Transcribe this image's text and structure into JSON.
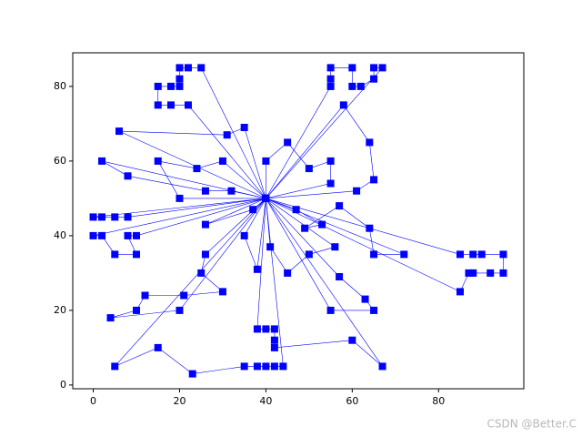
{
  "chart_data": {
    "type": "line",
    "color": "#0000ff",
    "marker": "square",
    "xlim": [
      -4.75,
      99.75
    ],
    "ylim": [
      -1,
      89
    ],
    "xticks": [
      0,
      20,
      40,
      60,
      80
    ],
    "yticks": [
      0,
      20,
      40,
      60,
      80
    ],
    "watermark": "CSDN @Better.C",
    "series": [
      {
        "x": [
          40,
          25,
          22,
          20,
          20,
          20,
          18,
          15,
          15,
          18,
          22,
          40
        ],
        "values": [
          50,
          85,
          85,
          85,
          82,
          80,
          80,
          80,
          75,
          75,
          75,
          50
        ]
      },
      {
        "x": [
          40,
          6,
          31,
          35,
          40
        ],
        "values": [
          50,
          68,
          67,
          69,
          50
        ]
      },
      {
        "x": [
          40,
          30,
          24,
          15,
          20,
          40
        ],
        "values": [
          50,
          60,
          58,
          60,
          50,
          50
        ]
      },
      {
        "x": [
          40,
          32,
          26,
          8,
          2,
          40
        ],
        "values": [
          50,
          52,
          52,
          56,
          60,
          50
        ]
      },
      {
        "x": [
          40,
          55,
          55,
          55,
          60,
          60,
          62,
          65,
          65,
          67,
          40
        ],
        "values": [
          50,
          80,
          82,
          85,
          85,
          80,
          80,
          82,
          85,
          85,
          50
        ]
      },
      {
        "x": [
          40,
          58,
          64,
          65,
          61,
          40
        ],
        "values": [
          50,
          75,
          65,
          55,
          52,
          50
        ]
      },
      {
        "x": [
          40,
          40,
          45,
          50,
          55,
          55,
          40
        ],
        "values": [
          50,
          60,
          65,
          58,
          60,
          54,
          50
        ]
      },
      {
        "x": [
          40,
          0,
          2,
          5,
          8,
          40
        ],
        "values": [
          50,
          45,
          45,
          45,
          45,
          50
        ]
      },
      {
        "x": [
          40,
          0,
          2,
          5,
          10,
          8,
          10,
          40
        ],
        "values": [
          50,
          40,
          40,
          35,
          35,
          40,
          40,
          50
        ]
      },
      {
        "x": [
          40,
          26,
          37,
          40
        ],
        "values": [
          50,
          43,
          47,
          50
        ]
      },
      {
        "x": [
          40,
          47,
          53,
          49,
          57,
          64,
          65,
          72,
          40
        ],
        "values": [
          50,
          47,
          43,
          42,
          48,
          42,
          35,
          35,
          50
        ]
      },
      {
        "x": [
          40,
          85,
          88,
          90,
          95,
          95,
          92,
          88,
          87,
          85,
          40
        ],
        "values": [
          50,
          35,
          35,
          35,
          35,
          30,
          30,
          30,
          30,
          25,
          50
        ]
      },
      {
        "x": [
          40,
          56,
          50,
          45,
          41,
          40
        ],
        "values": [
          50,
          37,
          35,
          30,
          37,
          50
        ]
      },
      {
        "x": [
          40,
          35,
          38,
          40
        ],
        "values": [
          50,
          40,
          31,
          50
        ]
      },
      {
        "x": [
          40,
          26,
          25,
          30,
          21,
          12,
          10,
          4,
          20,
          40
        ],
        "values": [
          50,
          35,
          30,
          25,
          24,
          24,
          20,
          18,
          20,
          50
        ]
      },
      {
        "x": [
          40,
          57,
          63,
          65,
          55,
          40
        ],
        "values": [
          50,
          29,
          23,
          20,
          20,
          50
        ]
      },
      {
        "x": [
          40,
          67,
          60,
          42,
          42,
          42,
          40,
          38,
          40
        ],
        "values": [
          50,
          5,
          12,
          10,
          12,
          15,
          15,
          15,
          50
        ]
      },
      {
        "x": [
          40,
          44,
          42,
          40,
          38,
          35,
          23,
          15,
          5,
          40
        ],
        "values": [
          50,
          5,
          5,
          5,
          5,
          5,
          3,
          10,
          5,
          50
        ]
      }
    ]
  }
}
